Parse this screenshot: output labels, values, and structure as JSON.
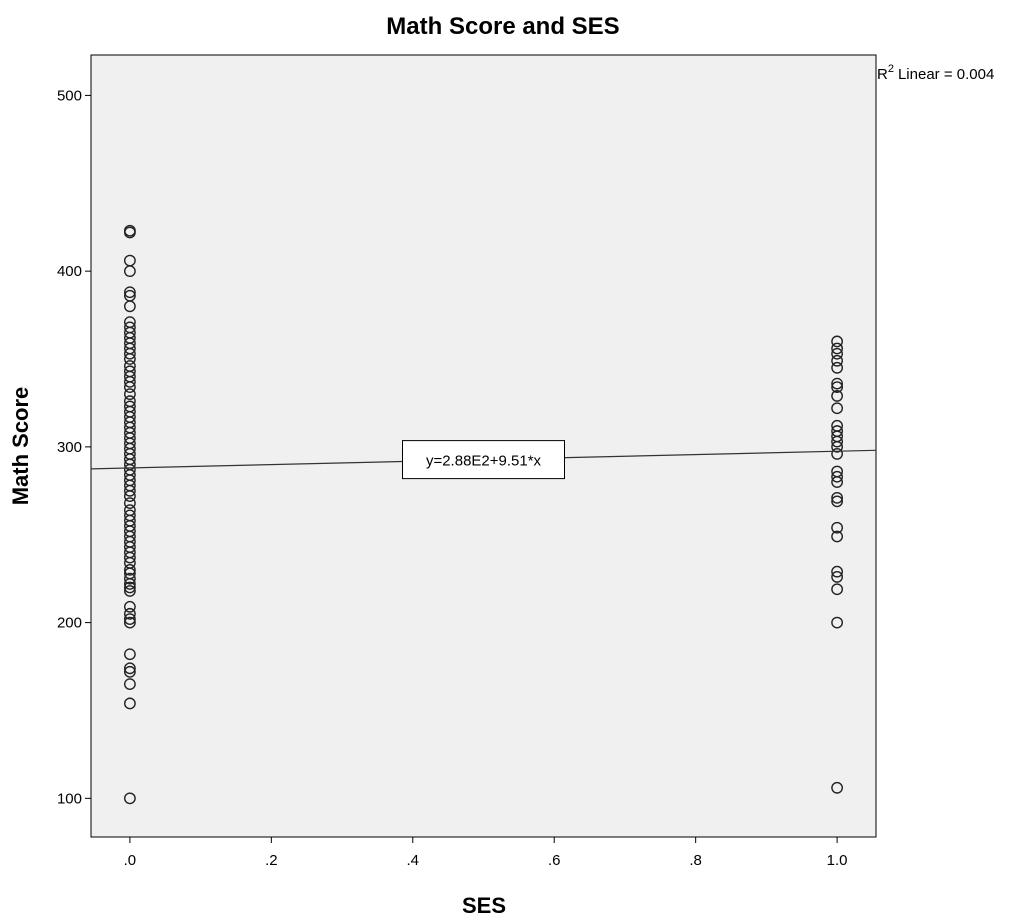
{
  "chart_data": {
    "type": "scatter",
    "title": "Math Score and SES",
    "xlabel": "SES",
    "ylabel": "Math Score",
    "xlim": [
      -0.055,
      1.055
    ],
    "ylim": [
      78,
      523
    ],
    "x_ticks": [
      0,
      0.2,
      0.4,
      0.6,
      0.8,
      1.0
    ],
    "x_tick_labels": [
      ".0",
      ".2",
      ".4",
      ".6",
      ".8",
      "1.0"
    ],
    "y_ticks": [
      100,
      200,
      300,
      400,
      500
    ],
    "y_tick_labels": [
      "100",
      "200",
      "300",
      "400",
      "500"
    ],
    "grid": false,
    "background_color": "#f0f0f0",
    "marker": "open-circle",
    "series": [
      {
        "points": [
          [
            0,
            100
          ],
          [
            0,
            154
          ],
          [
            0,
            165
          ],
          [
            0,
            172
          ],
          [
            0,
            174
          ],
          [
            0,
            182
          ],
          [
            0,
            200
          ],
          [
            0,
            202
          ],
          [
            0,
            205
          ],
          [
            0,
            209
          ],
          [
            0,
            218
          ],
          [
            0,
            220
          ],
          [
            0,
            222
          ],
          [
            0,
            225
          ],
          [
            0,
            228
          ],
          [
            0,
            230
          ],
          [
            0,
            234
          ],
          [
            0,
            237
          ],
          [
            0,
            240
          ],
          [
            0,
            243
          ],
          [
            0,
            246
          ],
          [
            0,
            249
          ],
          [
            0,
            252
          ],
          [
            0,
            255
          ],
          [
            0,
            258
          ],
          [
            0,
            261
          ],
          [
            0,
            264
          ],
          [
            0,
            268
          ],
          [
            0,
            272
          ],
          [
            0,
            275
          ],
          [
            0,
            278
          ],
          [
            0,
            281
          ],
          [
            0,
            284
          ],
          [
            0,
            287
          ],
          [
            0,
            290
          ],
          [
            0,
            293
          ],
          [
            0,
            296
          ],
          [
            0,
            299
          ],
          [
            0,
            302
          ],
          [
            0,
            305
          ],
          [
            0,
            308
          ],
          [
            0,
            311
          ],
          [
            0,
            314
          ],
          [
            0,
            317
          ],
          [
            0,
            320
          ],
          [
            0,
            323
          ],
          [
            0,
            326
          ],
          [
            0,
            330
          ],
          [
            0,
            334
          ],
          [
            0,
            337
          ],
          [
            0,
            340
          ],
          [
            0,
            343
          ],
          [
            0,
            346
          ],
          [
            0,
            350
          ],
          [
            0,
            353
          ],
          [
            0,
            356
          ],
          [
            0,
            359
          ],
          [
            0,
            362
          ],
          [
            0,
            365
          ],
          [
            0,
            368
          ],
          [
            0,
            371
          ],
          [
            0,
            380
          ],
          [
            0,
            386
          ],
          [
            0,
            388
          ],
          [
            0,
            400
          ],
          [
            0,
            406
          ],
          [
            0,
            422
          ],
          [
            0,
            423
          ],
          [
            1,
            106
          ],
          [
            1,
            200
          ],
          [
            1,
            219
          ],
          [
            1,
            226
          ],
          [
            1,
            229
          ],
          [
            1,
            249
          ],
          [
            1,
            254
          ],
          [
            1,
            269
          ],
          [
            1,
            271
          ],
          [
            1,
            280
          ],
          [
            1,
            283
          ],
          [
            1,
            286
          ],
          [
            1,
            296
          ],
          [
            1,
            300
          ],
          [
            1,
            303
          ],
          [
            1,
            306
          ],
          [
            1,
            309
          ],
          [
            1,
            312
          ],
          [
            1,
            322
          ],
          [
            1,
            329
          ],
          [
            1,
            334
          ],
          [
            1,
            336
          ],
          [
            1,
            345
          ],
          [
            1,
            349
          ],
          [
            1,
            353
          ],
          [
            1,
            356
          ],
          [
            1,
            360
          ]
        ]
      }
    ],
    "fit_line": {
      "intercept": 288,
      "slope": 9.51,
      "equation_label": "y=2.88E2+9.51*x",
      "r_squared_label": "Linear = 0.004",
      "r_squared_prefix": "R",
      "r_squared_superscript": "2"
    }
  }
}
